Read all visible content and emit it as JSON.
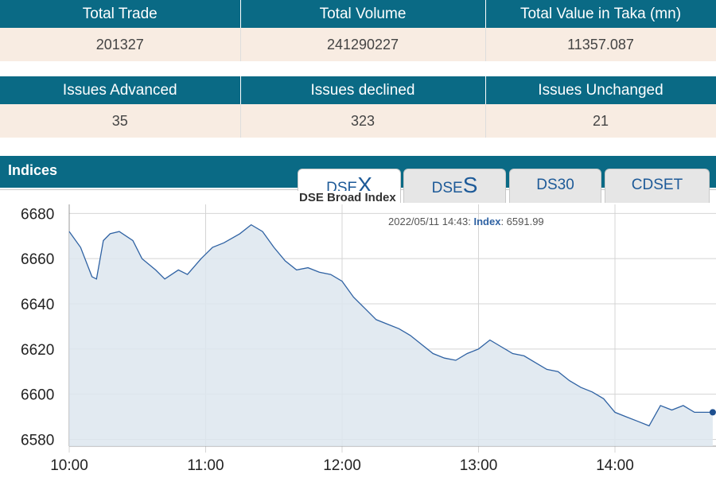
{
  "trade_stats": {
    "headers": [
      "Total Trade",
      "Total Volume",
      "Total Value in Taka (mn)"
    ],
    "values": [
      "201327",
      "241290227",
      "11357.087"
    ]
  },
  "issues_stats": {
    "headers": [
      "Issues Advanced",
      "Issues declined",
      "Issues Unchanged"
    ],
    "values": [
      "35",
      "323",
      "21"
    ]
  },
  "indices": {
    "title": "Indices",
    "tabs": [
      {
        "prefix": "DSE",
        "suffix": "X",
        "label": "DSEX",
        "active": true
      },
      {
        "prefix": "DSE",
        "suffix": "S",
        "label": "DSES",
        "active": false
      },
      {
        "label": "DS30",
        "active": false
      },
      {
        "label": "CDSET",
        "active": false
      }
    ],
    "chart_title": "DSE Broad Index"
  },
  "tooltip": {
    "timestamp": "2022/05/11 14:43:",
    "label": "Index",
    "value": "6591.99"
  },
  "colors": {
    "header_bg": "#0a6a85",
    "value_bg": "#f8ece2",
    "line": "#2f62a3",
    "fill": "#dde6ef"
  },
  "chart_data": {
    "type": "area",
    "title": "DSE Broad Index",
    "xlabel": "",
    "ylabel": "",
    "x_ticks": [
      "10:00",
      "11:00",
      "12:00",
      "13:00",
      "14:00"
    ],
    "y_ticks": [
      6580,
      6600,
      6620,
      6640,
      6660,
      6680
    ],
    "ylim": [
      6577,
      6684
    ],
    "xlim_minutes": [
      600,
      645
    ],
    "grid": true,
    "series": [
      {
        "name": "Index",
        "x": [
          "10:00",
          "10:05",
          "10:10",
          "10:12",
          "10:15",
          "10:18",
          "10:22",
          "10:28",
          "10:32",
          "10:38",
          "10:42",
          "10:48",
          "10:52",
          "10:58",
          "11:03",
          "11:08",
          "11:15",
          "11:20",
          "11:25",
          "11:30",
          "11:35",
          "11:40",
          "11:45",
          "11:50",
          "11:55",
          "12:00",
          "12:05",
          "12:10",
          "12:15",
          "12:20",
          "12:25",
          "12:30",
          "12:35",
          "12:40",
          "12:45",
          "12:50",
          "12:55",
          "13:00",
          "13:05",
          "13:10",
          "13:15",
          "13:20",
          "13:25",
          "13:30",
          "13:35",
          "13:40",
          "13:45",
          "13:50",
          "13:55",
          "14:00",
          "14:05",
          "14:10",
          "14:15",
          "14:20",
          "14:25",
          "14:30",
          "14:35",
          "14:40",
          "14:43"
        ],
        "values": [
          6672,
          6665,
          6652,
          6651,
          6668,
          6671,
          6672,
          6668,
          6660,
          6655,
          6651,
          6655,
          6653,
          6660,
          6665,
          6667,
          6671,
          6675,
          6672,
          6665,
          6659,
          6655,
          6656,
          6654,
          6653,
          6650,
          6643,
          6638,
          6633,
          6631,
          6629,
          6626,
          6622,
          6618,
          6616,
          6615,
          6618,
          6620,
          6624,
          6621,
          6618,
          6617,
          6614,
          6611,
          6610,
          6606,
          6603,
          6601,
          6598,
          6592,
          6590,
          6588,
          6586,
          6595,
          6593,
          6595,
          6592,
          6592,
          6592
        ]
      }
    ]
  }
}
